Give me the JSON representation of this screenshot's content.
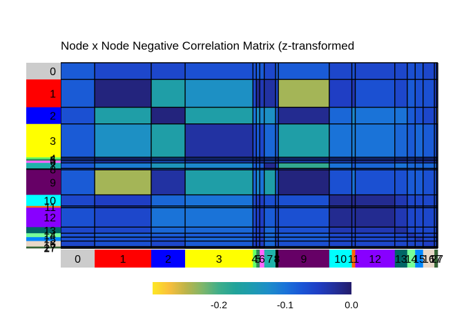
{
  "chart_data": {
    "type": "heatmap",
    "title": "Node x Node Negative Correlation Matrix (z-transformed",
    "networks": [
      {
        "label": "0",
        "color": "#cccccc",
        "n": 3
      },
      {
        "label": "1",
        "color": "#ff0000",
        "n": 5
      },
      {
        "label": "2",
        "color": "#0000ff",
        "n": 3
      },
      {
        "label": "3",
        "color": "#ffff00",
        "n": 6
      },
      {
        "label": "4",
        "color": "#66ff66",
        "n": 0.3
      },
      {
        "label": "5",
        "color": "#2e8b57",
        "n": 0.3
      },
      {
        "label": "6",
        "color": "#ff66ff",
        "n": 0.4
      },
      {
        "label": "7",
        "color": "#20b2aa",
        "n": 1
      },
      {
        "label": "8",
        "color": "#000000",
        "n": 0.25
      },
      {
        "label": "9",
        "color": "#660066",
        "n": 4.5
      },
      {
        "label": "10",
        "color": "#00ffff",
        "n": 2
      },
      {
        "label": "11",
        "color": "#ff6600",
        "n": 0.3
      },
      {
        "label": "12",
        "color": "#8800ff",
        "n": 3.5
      },
      {
        "label": "13",
        "color": "#006666",
        "n": 1.1
      },
      {
        "label": "14",
        "color": "#77ff99",
        "n": 0.7
      },
      {
        "label": "15",
        "color": "#0088ff",
        "n": 0.7
      },
      {
        "label": "16",
        "color": "#e8d8c8",
        "n": 1
      },
      {
        "label": "17",
        "color": "#336633",
        "n": 0.2
      },
      {
        "label": "27",
        "color": "#3a5f3a",
        "n": 0.1
      }
    ],
    "colorscale": [
      "#fde725",
      "#f9bf3c",
      "#bdb44a",
      "#7fb66a",
      "#3fae8a",
      "#21a39a",
      "#1e9bb0",
      "#1d8dc9",
      "#1a73d8",
      "#1a55d6",
      "#1f3ec4",
      "#232f9a",
      "#231c6a"
    ],
    "zrange": [
      -0.3,
      0.0
    ],
    "colorbar": {
      "ticks": [
        -0.2,
        -0.1,
        0.0
      ],
      "tick_labels": [
        "-0.2",
        "-0.1",
        "0.0"
      ]
    },
    "z": [
      [
        -0.08,
        -0.06,
        -0.06,
        -0.07,
        -0.07,
        -0.08,
        -0.08,
        -0.06,
        -0.08,
        -0.08,
        -0.06,
        -0.07,
        -0.06,
        -0.06,
        -0.07,
        -0.07,
        -0.06,
        -0.06,
        -0.05
      ],
      [
        -0.08,
        -0.01,
        -0.16,
        -0.13,
        -0.06,
        -0.02,
        -0.04,
        -0.03,
        -0.06,
        -0.24,
        -0.05,
        -0.04,
        -0.07,
        -0.06,
        -0.08,
        -0.07,
        -0.07,
        -0.05,
        -0.06
      ],
      [
        -0.07,
        -0.16,
        -0.01,
        -0.16,
        -0.1,
        -0.13,
        -0.12,
        -0.13,
        -0.08,
        -0.02,
        -0.09,
        -0.12,
        -0.1,
        -0.1,
        -0.08,
        -0.07,
        -0.06,
        -0.06,
        -0.26
      ],
      [
        -0.08,
        -0.13,
        -0.16,
        -0.03,
        -0.06,
        -0.08,
        -0.06,
        -0.09,
        -0.08,
        -0.16,
        -0.1,
        -0.11,
        -0.1,
        -0.09,
        -0.08,
        -0.09,
        -0.08,
        -0.07,
        -0.06
      ],
      [
        -0.06,
        -0.05,
        -0.08,
        -0.06,
        -0.05,
        -0.03,
        -0.04,
        -0.06,
        -0.04,
        -0.06,
        -0.05,
        -0.04,
        -0.06,
        -0.05,
        -0.06,
        -0.05,
        -0.05,
        -0.05,
        -0.05
      ],
      [
        -0.06,
        -0.04,
        -0.07,
        -0.05,
        -0.06,
        -0.05,
        -0.05,
        -0.06,
        -0.05,
        -0.06,
        -0.06,
        -0.05,
        -0.05,
        -0.05,
        -0.06,
        -0.05,
        -0.05,
        -0.05,
        -0.05
      ],
      [
        -0.06,
        -0.05,
        -0.08,
        -0.06,
        -0.05,
        -0.05,
        -0.04,
        -0.07,
        -0.05,
        -0.07,
        -0.06,
        -0.05,
        -0.05,
        -0.05,
        -0.06,
        -0.05,
        -0.05,
        -0.05,
        -0.05
      ],
      [
        -0.08,
        -0.11,
        -0.14,
        -0.12,
        -0.08,
        -0.09,
        -0.08,
        -0.02,
        -0.07,
        -0.19,
        -0.1,
        -0.08,
        -0.09,
        -0.1,
        -0.09,
        -0.09,
        -0.09,
        -0.09,
        -0.08
      ],
      [
        -0.07,
        -0.05,
        -0.09,
        -0.07,
        -0.07,
        -0.07,
        -0.06,
        -0.06,
        -0.02,
        -0.06,
        -0.07,
        -0.07,
        -0.06,
        -0.06,
        -0.07,
        -0.06,
        -0.06,
        -0.06,
        -0.05
      ],
      [
        -0.08,
        -0.24,
        -0.03,
        -0.16,
        -0.09,
        -0.12,
        -0.1,
        -0.16,
        -0.08,
        -0.01,
        -0.07,
        -0.1,
        -0.07,
        -0.07,
        -0.08,
        -0.08,
        -0.07,
        -0.07,
        -0.05
      ],
      [
        -0.06,
        -0.05,
        -0.09,
        -0.1,
        -0.06,
        -0.05,
        -0.05,
        -0.07,
        -0.07,
        -0.07,
        -0.02,
        -0.02,
        -0.02,
        -0.04,
        -0.06,
        -0.06,
        -0.06,
        -0.06,
        -0.05
      ],
      [
        -0.07,
        -0.05,
        -0.1,
        -0.11,
        -0.07,
        -0.06,
        -0.06,
        -0.07,
        -0.07,
        -0.08,
        -0.03,
        -0.02,
        -0.03,
        -0.05,
        -0.06,
        -0.06,
        -0.06,
        -0.06,
        -0.05
      ],
      [
        -0.07,
        -0.06,
        -0.1,
        -0.1,
        -0.06,
        -0.05,
        -0.05,
        -0.08,
        -0.06,
        -0.07,
        -0.02,
        -0.03,
        -0.02,
        -0.04,
        -0.06,
        -0.06,
        -0.06,
        -0.06,
        -0.05
      ],
      [
        -0.06,
        -0.06,
        -0.09,
        -0.09,
        -0.06,
        -0.05,
        -0.05,
        -0.09,
        -0.06,
        -0.07,
        -0.04,
        -0.05,
        -0.04,
        -0.03,
        -0.06,
        -0.06,
        -0.06,
        -0.06,
        -0.05
      ],
      [
        -0.07,
        -0.08,
        -0.08,
        -0.08,
        -0.06,
        -0.06,
        -0.06,
        -0.09,
        -0.07,
        -0.08,
        -0.06,
        -0.06,
        -0.06,
        -0.06,
        -0.04,
        -0.06,
        -0.06,
        -0.06,
        -0.05
      ],
      [
        -0.07,
        -0.07,
        -0.07,
        -0.09,
        -0.05,
        -0.05,
        -0.05,
        -0.09,
        -0.06,
        -0.08,
        -0.06,
        -0.06,
        -0.06,
        -0.06,
        -0.06,
        -0.04,
        -0.06,
        -0.06,
        -0.05
      ],
      [
        -0.06,
        -0.07,
        -0.06,
        -0.08,
        -0.05,
        -0.05,
        -0.05,
        -0.09,
        -0.06,
        -0.07,
        -0.06,
        -0.06,
        -0.06,
        -0.06,
        -0.06,
        -0.06,
        -0.05,
        -0.06,
        -0.05
      ],
      [
        -0.06,
        -0.05,
        -0.06,
        -0.07,
        -0.05,
        -0.05,
        -0.05,
        -0.09,
        -0.06,
        -0.07,
        -0.06,
        -0.06,
        -0.06,
        -0.06,
        -0.06,
        -0.06,
        -0.06,
        -0.04,
        -0.05
      ],
      [
        -0.05,
        -0.06,
        -0.26,
        -0.06,
        -0.05,
        -0.05,
        -0.05,
        -0.08,
        -0.05,
        -0.05,
        -0.05,
        -0.05,
        -0.05,
        -0.05,
        -0.05,
        -0.05,
        -0.05,
        -0.05,
        -0.04
      ]
    ]
  }
}
